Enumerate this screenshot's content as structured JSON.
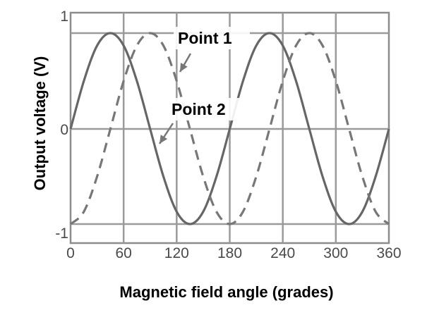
{
  "chart_data": {
    "type": "line",
    "title": "",
    "xlabel": "Magnetic field angle (grades)",
    "ylabel": "Output voltage (V)",
    "xlim": [
      0,
      360
    ],
    "ylim": [
      -1,
      1
    ],
    "x_ticks": [
      "0",
      "60",
      "120",
      "180",
      "240",
      "300",
      "360"
    ],
    "y_ticks": [
      "-1",
      "0",
      "1"
    ],
    "grid": true,
    "legend": "none",
    "series": [
      {
        "style": "solid",
        "color": "#666666",
        "x": [
          0,
          15,
          30,
          45,
          60,
          75,
          90,
          105,
          120,
          135,
          150,
          165,
          180,
          195,
          210,
          225,
          240,
          255,
          270,
          285,
          300,
          315,
          330,
          345,
          360
        ],
        "y": [
          0,
          0.5,
          0.87,
          1.0,
          0.87,
          0.5,
          0,
          -0.5,
          -0.87,
          -1.0,
          -0.87,
          -0.5,
          0,
          0.5,
          0.87,
          1.0,
          0.87,
          0.5,
          0,
          -0.5,
          -0.87,
          -1.0,
          -0.87,
          -0.5,
          0
        ]
      },
      {
        "style": "dashed",
        "color": "#777777",
        "x": [
          0,
          15,
          30,
          45,
          60,
          75,
          90,
          105,
          120,
          135,
          150,
          165,
          180,
          195,
          210,
          225,
          240,
          255,
          270,
          285,
          300,
          315,
          330,
          345,
          360
        ],
        "y": [
          -1.0,
          -0.87,
          -0.5,
          0,
          0.5,
          0.87,
          1.0,
          0.87,
          0.5,
          0,
          -0.5,
          -0.87,
          -1.0,
          -0.87,
          -0.5,
          0,
          0.5,
          0.87,
          1.0,
          0.87,
          0.5,
          0,
          -0.5,
          -0.87,
          -1.0
        ]
      }
    ],
    "annotations": [
      {
        "text": "Point 1",
        "x": 120,
        "y": 0.7
      },
      {
        "text": "Point 2",
        "x": 105,
        "y": -0.15
      }
    ]
  }
}
